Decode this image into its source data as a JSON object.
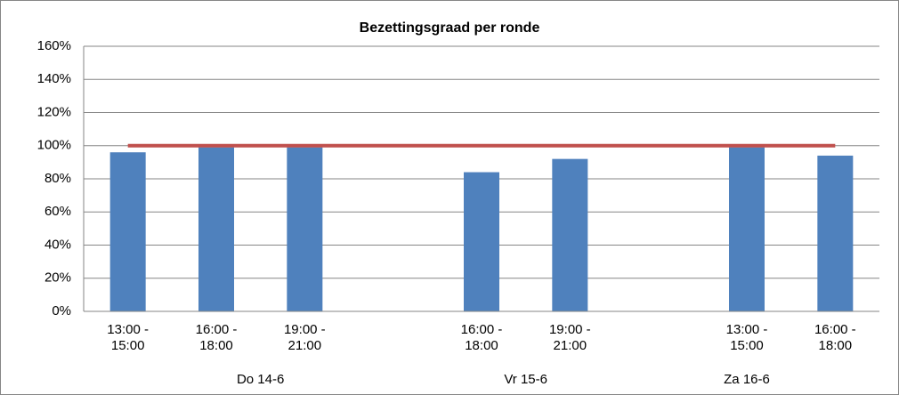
{
  "chart_data": {
    "type": "bar",
    "title": "Bezettingsgraad per ronde",
    "categories": [
      "13:00 -\n15:00",
      "16:00 -\n18:00",
      "19:00 -\n21:00",
      null,
      "16:00 -\n18:00",
      "19:00 -\n21:00",
      null,
      "13:00 -\n15:00",
      "16:00 -\n18:00"
    ],
    "groups": [
      {
        "name": "Do 14-6",
        "size": 4
      },
      {
        "name": "Vr 15-6",
        "size": 2
      },
      {
        "name": "Za 16-6",
        "size": 3
      }
    ],
    "series": [
      {
        "type": "bar",
        "color": "#4f81bd",
        "values": [
          96,
          99,
          99,
          null,
          84,
          92,
          null,
          99,
          94
        ]
      },
      {
        "type": "line",
        "color": "#c0504d",
        "values": [
          100,
          100,
          100,
          100,
          100,
          100,
          100,
          100,
          100
        ]
      }
    ],
    "ylim": [
      0,
      160
    ],
    "yticks": [
      {
        "value": 0,
        "label": "0%"
      },
      {
        "value": 20,
        "label": "20%"
      },
      {
        "value": 40,
        "label": "40%"
      },
      {
        "value": 60,
        "label": "60%"
      },
      {
        "value": 80,
        "label": "80%"
      },
      {
        "value": 100,
        "label": "100%"
      },
      {
        "value": 120,
        "label": "120%"
      },
      {
        "value": 140,
        "label": "140%"
      },
      {
        "value": 160,
        "label": "160%"
      }
    ],
    "grid": true
  }
}
